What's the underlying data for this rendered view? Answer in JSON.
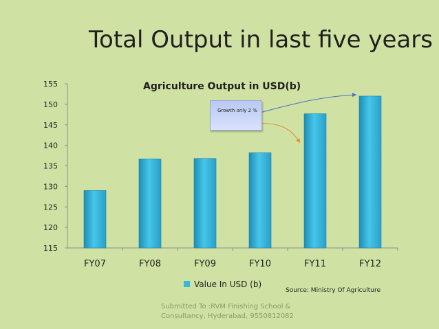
{
  "slide": {
    "title": "Total Output in last five years",
    "source": "Source: Ministry Of Agriculture",
    "footer_line1": "Submitted To :RVM Finishing School &",
    "footer_line2": "Consultancy, Hyderabad, 9550812082",
    "callout_text": "Growth only 2 %"
  },
  "colors": {
    "background": "#cfe2a3",
    "bar_fill": "#37b8dc",
    "bar_edge": "#1e7fa6",
    "arrow_blue": "#4a6fc4",
    "arrow_orange": "#e0902a"
  },
  "chart_data": {
    "type": "bar",
    "title": "Agriculture Output in USD(b)",
    "categories": [
      "FY07",
      "FY08",
      "FY09",
      "FY10",
      "FY11",
      "FY12"
    ],
    "series": [
      {
        "name": "Value In USD (b)",
        "values": [
          129,
          136.7,
          136.8,
          138.2,
          147.7,
          152
        ]
      }
    ],
    "ylim": [
      115,
      155
    ],
    "yticks": [
      115,
      120,
      125,
      130,
      135,
      140,
      145,
      150,
      155
    ],
    "grid": false,
    "legend": "bottom"
  }
}
